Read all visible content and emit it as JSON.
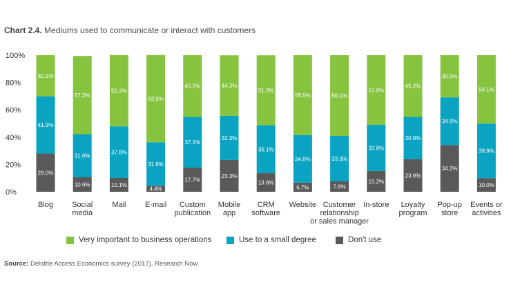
{
  "title": {
    "label": "Chart 2.4.",
    "text": "Mediums used to communicate or interact with customers"
  },
  "source": {
    "label": "Source:",
    "text": "Deloitte Access Economics survey (2017), Research Now"
  },
  "colors": {
    "very_important": "#86c440",
    "small_degree": "#0aa3c2",
    "dont_use": "#595959"
  },
  "chart_data": {
    "type": "bar",
    "stacked": true,
    "categories": [
      [
        "Blog"
      ],
      [
        "Social",
        "media"
      ],
      [
        "Mail"
      ],
      [
        "E-mail"
      ],
      [
        "Custom",
        "publication"
      ],
      [
        "Mobile",
        "app"
      ],
      [
        "CRM",
        "software"
      ],
      [
        "Website"
      ],
      [
        "Customer",
        "relationship",
        "or sales manager"
      ],
      [
        "In-store"
      ],
      [
        "Loyalty",
        "program"
      ],
      [
        "Pop-up",
        "store"
      ],
      [
        "Events or",
        "activities"
      ]
    ],
    "series": [
      {
        "name": "Don't use",
        "color": "#595959",
        "values": [
          28.0,
          10.6,
          10.1,
          4.4,
          17.7,
          23.3,
          13.6,
          6.7,
          7.6,
          15.2,
          23.9,
          34.2,
          10.0
        ],
        "labels": [
          "28.0%",
          "10.6%",
          "10.1%",
          "4.4%",
          "17.7%",
          "23.3%",
          "13.6%",
          "6.7%",
          "7.6%",
          "15.2%",
          "23.9%",
          "34.2%",
          "10.0%"
        ]
      },
      {
        "name": "Use to a small degree",
        "color": "#0aa3c2",
        "values": [
          41.9,
          31.6,
          37.8,
          31.8,
          37.1,
          32.3,
          35.1,
          34.8,
          33.3,
          33.8,
          30.9,
          34.9,
          39.9
        ],
        "labels": [
          "41.9%",
          "31.6%",
          "37.8%",
          "31.8%",
          "37.1%",
          "32.3%",
          "35.1%",
          "34.8%",
          "33.3%",
          "33.8%",
          "30.9%",
          "34.9%",
          "39.9%"
        ]
      },
      {
        "name": "Very important to business operations",
        "color": "#86c440",
        "values": [
          30.1,
          57.2,
          52.2,
          63.9,
          45.2,
          44.3,
          51.2,
          58.5,
          59.1,
          51.0,
          45.2,
          30.9,
          50.1
        ],
        "labels": [
          "30.1%",
          "57.2%",
          "52.2%",
          "63.9%",
          "45.2%",
          "44.3%",
          "51.2%",
          "58.5%",
          "59.1%",
          "51.0%",
          "45.2%",
          "30.9%",
          "50.1%"
        ]
      }
    ],
    "ylim": [
      0,
      100
    ],
    "yticks": [
      "0%",
      "20%",
      "40%",
      "60%",
      "80%",
      "100%"
    ],
    "ytick_values": [
      0,
      20,
      40,
      60,
      80,
      100
    ],
    "grid": false,
    "legend_position": "bottom",
    "legend": [
      {
        "label": "Very important to business operations",
        "color": "#86c440"
      },
      {
        "label": "Use to a small degree",
        "color": "#0aa3c2"
      },
      {
        "label": "Don't use",
        "color": "#595959"
      }
    ]
  }
}
